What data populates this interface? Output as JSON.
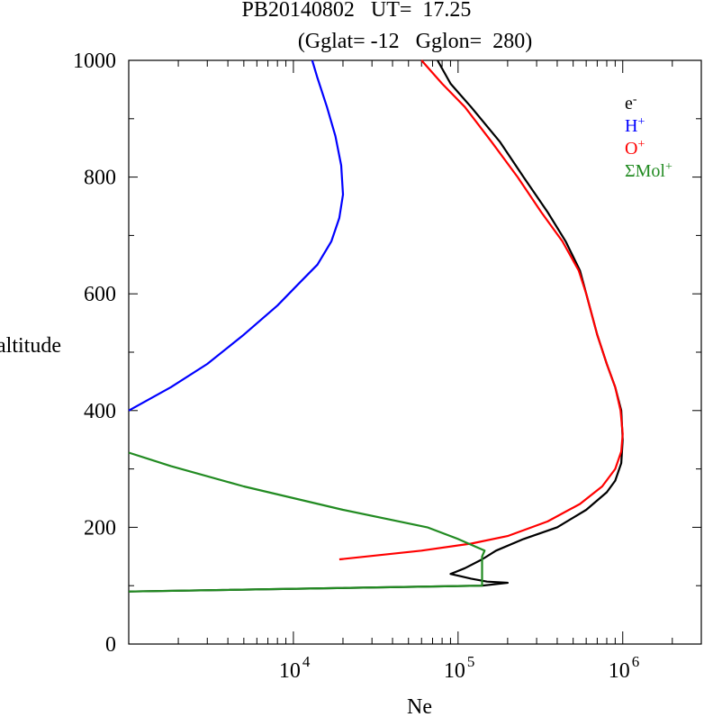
{
  "header": {
    "line1": "PB20140802   UT=  17.25",
    "line2": "(Gglat= -12   Gglon=  280)"
  },
  "chart_data": {
    "type": "line",
    "title": "PB20140802   UT=  17.25",
    "subtitle": "(Gglat= -12   Gglon=  280)",
    "xlabel": "Ne",
    "ylabel": "altitude",
    "xscale": "log",
    "xlim": [
      1000,
      3000000
    ],
    "ylim": [
      0,
      1000
    ],
    "x_tick_labels": [
      {
        "value": 10000,
        "base": "10",
        "exp": "4"
      },
      {
        "value": 100000,
        "base": "10",
        "exp": "5"
      },
      {
        "value": 1000000,
        "base": "10",
        "exp": "6"
      }
    ],
    "y_ticks": [
      0,
      200,
      400,
      600,
      800,
      1000
    ],
    "grid": false,
    "legend_position": "top-right",
    "series": [
      {
        "name": "e-",
        "label_base": "e",
        "label_sup": "-",
        "color": "#000000",
        "points": [
          [
            1000,
            90
          ],
          [
            140000,
            100
          ],
          [
            200000,
            105
          ],
          [
            150000,
            107
          ],
          [
            120000,
            112
          ],
          [
            90000,
            120
          ],
          [
            110000,
            130
          ],
          [
            140000,
            145
          ],
          [
            170000,
            160
          ],
          [
            250000,
            180
          ],
          [
            400000,
            200
          ],
          [
            600000,
            230
          ],
          [
            800000,
            260
          ],
          [
            900000,
            280
          ],
          [
            980000,
            310
          ],
          [
            1000000,
            350
          ],
          [
            980000,
            400
          ],
          [
            900000,
            440
          ],
          [
            800000,
            480
          ],
          [
            700000,
            530
          ],
          [
            600000,
            600
          ],
          [
            550000,
            640
          ],
          [
            450000,
            690
          ],
          [
            350000,
            740
          ],
          [
            250000,
            800
          ],
          [
            180000,
            860
          ],
          [
            120000,
            920
          ],
          [
            90000,
            960
          ],
          [
            75000,
            1000
          ]
        ]
      },
      {
        "name": "H+",
        "label_base": "H",
        "label_sup": "+",
        "color": "#0000ff",
        "points": [
          [
            1000,
            400
          ],
          [
            1800,
            440
          ],
          [
            3000,
            480
          ],
          [
            5000,
            530
          ],
          [
            8000,
            580
          ],
          [
            11000,
            620
          ],
          [
            14000,
            650
          ],
          [
            17000,
            690
          ],
          [
            19000,
            730
          ],
          [
            20000,
            770
          ],
          [
            19500,
            820
          ],
          [
            18000,
            870
          ],
          [
            16000,
            920
          ],
          [
            14000,
            970
          ],
          [
            13000,
            1000
          ]
        ]
      },
      {
        "name": "O+",
        "label_base": "O",
        "label_sup": "+",
        "color": "#ff0000",
        "points": [
          [
            19000,
            145
          ],
          [
            60000,
            160
          ],
          [
            120000,
            172
          ],
          [
            200000,
            185
          ],
          [
            350000,
            210
          ],
          [
            550000,
            240
          ],
          [
            750000,
            270
          ],
          [
            900000,
            300
          ],
          [
            980000,
            330
          ],
          [
            1000000,
            360
          ],
          [
            970000,
            400
          ],
          [
            900000,
            440
          ],
          [
            800000,
            480
          ],
          [
            700000,
            530
          ],
          [
            600000,
            600
          ],
          [
            540000,
            640
          ],
          [
            430000,
            690
          ],
          [
            320000,
            740
          ],
          [
            230000,
            800
          ],
          [
            160000,
            860
          ],
          [
            110000,
            920
          ],
          [
            80000,
            960
          ],
          [
            60000,
            1000
          ]
        ]
      },
      {
        "name": "ΣMol+",
        "label_base": "ΣMol",
        "label_sup": "+",
        "color": "#228b22",
        "points": [
          [
            1000,
            90
          ],
          [
            140000,
            100
          ],
          [
            140000,
            150
          ],
          [
            145000,
            160
          ],
          [
            120000,
            170
          ],
          [
            100000,
            180
          ],
          [
            65000,
            200
          ],
          [
            20000,
            230
          ],
          [
            5000,
            270
          ],
          [
            1800,
            305
          ],
          [
            1000,
            328
          ]
        ]
      }
    ]
  }
}
